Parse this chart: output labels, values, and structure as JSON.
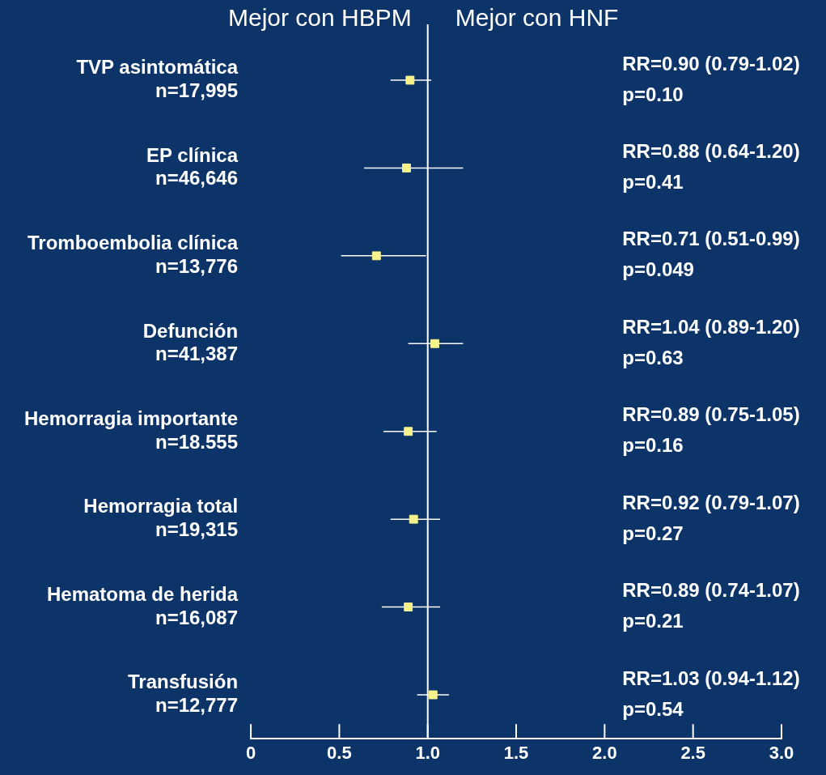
{
  "chart_data": {
    "type": "scatter",
    "orientation": "horizontal",
    "annotations": [
      "Mejor con HBPM",
      "Mejor con HNF",
      "RR=0.90 (0.79-1.02)\np=0.10",
      "RR=0.88 (0.64-1.20)\np=0.41",
      "RR=0.71 (0.51-0.99)\np=0.049",
      "RR=1.04 (0.89-1.20)\np=0.63",
      "RR=0.89 (0.75-1.05)\np=0.16",
      "RR=0.92 (0.79-1.07)\np=0.27",
      "RR=0.89 (0.74-1.07)\np=0.21",
      "RR=1.03 (0.94-1.12)\np=0.54"
    ],
    "categories": [
      "TVP asintomática\nn=17,995",
      "EP clínica\nn=46,646",
      "Tromboembolia clínica\nn=13,776",
      "Defunción\nn=41,387",
      "Hemorragia importante\nn=18.555",
      "Hemorragia total\nn=19,315",
      "Hematoma de herida\nn=16,087",
      "Transfusión\nn=12,777"
    ],
    "series": [
      {
        "color": "#f6f28c",
        "values": [
          0.9,
          0.88,
          0.71,
          1.04,
          0.89,
          0.92,
          0.89,
          1.03
        ],
        "errors": [
          [
            0.79,
            1.02
          ],
          [
            0.64,
            1.2
          ],
          [
            0.51,
            0.99
          ],
          [
            0.89,
            1.2
          ],
          [
            0.75,
            1.05
          ],
          [
            0.79,
            1.07
          ],
          [
            0.74,
            1.07
          ],
          [
            0.94,
            1.12
          ]
        ]
      }
    ],
    "xlim": [
      0,
      3
    ],
    "xticks": [
      0,
      0.5,
      {
        "value": 1,
        "label": "1.0"
      },
      1.5,
      {
        "value": 2,
        "label": "2.0"
      },
      2.5,
      {
        "value": 3,
        "label": "3.0"
      }
    ],
    "ref_lines": [
      {
        "axis": "x",
        "value": 1,
        "color": "#ffffff"
      }
    ],
    "marker": "square",
    "grid": false,
    "legend": false
  }
}
